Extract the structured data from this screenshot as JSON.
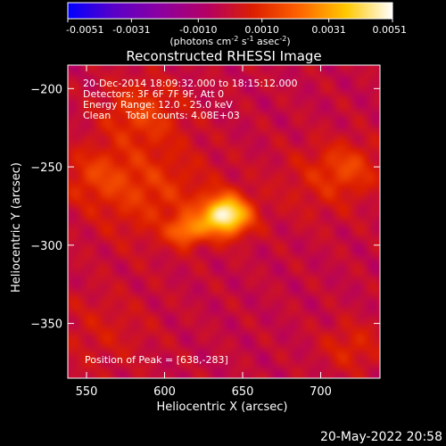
{
  "title": "Reconstructed RHESSI Image",
  "timestamp": "20-May-2022 20:58",
  "colorbar": {
    "ticks": [
      "-0.0051",
      "-0.0031",
      "-0.0010",
      "0.0010",
      "0.0031",
      "0.0051"
    ],
    "unit_base": "(photons cm",
    "unit_sup1": "-2",
    "unit_mid": " s",
    "unit_sup2": "-1",
    "unit_mid2": " asec",
    "unit_sup3": "-2",
    "unit_end": ")"
  },
  "annotations": {
    "time_range": "20-Dec-2014 18:09:32.000 to 18:15:12.000",
    "detectors": "Detectors: 3F 6F 7F 9F, Att 0",
    "energy": "Energy Range: 12.0 - 25.0 keV",
    "clean": "Clean",
    "total_counts": "Total counts: 4.08E+03",
    "peak": "Position of Peak = [638,-283]"
  },
  "chart_data": {
    "type": "heatmap",
    "title": "Reconstructed RHESSI Image",
    "xlabel": "Heliocentric X (arcsec)",
    "ylabel": "Heliocentric Y (arcsec)",
    "xlim": [
      538,
      738
    ],
    "ylim": [
      -385,
      -185
    ],
    "xticks": [
      550,
      600,
      650,
      700
    ],
    "yticks": [
      -200,
      -250,
      -300,
      -350
    ],
    "xtick_labels": [
      "550",
      "600",
      "650",
      "700"
    ],
    "ytick_labels": [
      "−200",
      "−250",
      "−300",
      "−350"
    ],
    "value_range": [
      -0.0051,
      0.0051
    ],
    "colormap": [
      "#0000ff",
      "#5a00c8",
      "#8c00a0",
      "#b40064",
      "#dc1e00",
      "#ff6400",
      "#ffc800",
      "#ffffff"
    ],
    "peak": {
      "x": 638,
      "y": -283
    },
    "sources": [
      {
        "x": 639,
        "y": -281,
        "width": 11,
        "value": 0.0051
      },
      {
        "x": 614,
        "y": -291,
        "width": 8,
        "value": 0.0024
      },
      {
        "x": 590,
        "y": -265,
        "width": 28,
        "value": 0.0013
      },
      {
        "x": 585,
        "y": -215,
        "width": 18,
        "value": 0.0014
      },
      {
        "x": 555,
        "y": -255,
        "width": 15,
        "value": 0.001
      },
      {
        "x": 718,
        "y": -250,
        "width": 14,
        "value": 0.0012
      },
      {
        "x": 700,
        "y": -260,
        "width": 22,
        "value": 0.0007
      },
      {
        "x": 720,
        "y": -365,
        "width": 14,
        "value": 0.001
      },
      {
        "x": 560,
        "y": -355,
        "width": 24,
        "value": 0.0006
      }
    ]
  }
}
